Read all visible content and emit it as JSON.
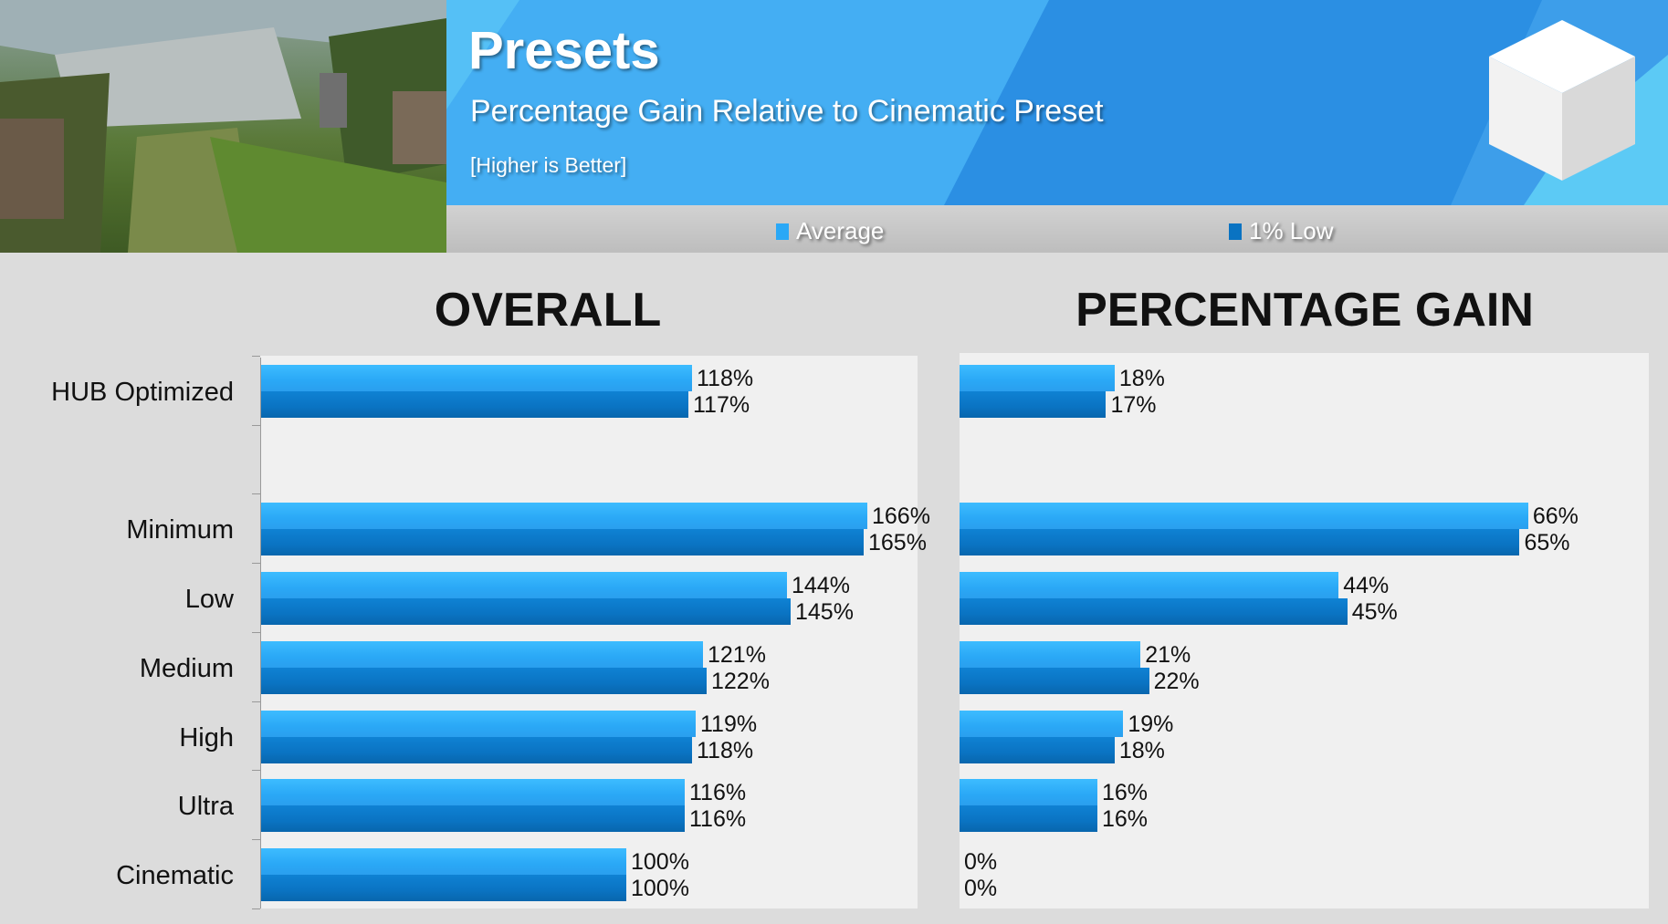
{
  "header": {
    "title": "Presets",
    "subtitle": "Percentage Gain Relative to Cinematic Preset",
    "note": "[Higher is Better]"
  },
  "legend": [
    {
      "label": "Average",
      "color": "#2aa8f6"
    },
    {
      "label": "1% Low",
      "color": "#0a73c2"
    }
  ],
  "chart_data": [
    {
      "type": "bar",
      "orientation": "horizontal",
      "title": "OVERALL",
      "categories": [
        "HUB Optimized",
        "",
        "Minimum",
        "Low",
        "Medium",
        "High",
        "Ultra",
        "Cinematic"
      ],
      "series": [
        {
          "name": "Average",
          "values": [
            118,
            null,
            166,
            144,
            121,
            119,
            116,
            100
          ]
        },
        {
          "name": "1% Low",
          "values": [
            117,
            null,
            165,
            145,
            122,
            118,
            116,
            100
          ]
        }
      ],
      "unit": "%",
      "xlim": [
        0,
        180
      ]
    },
    {
      "type": "bar",
      "orientation": "horizontal",
      "title": "PERCENTAGE GAIN",
      "categories": [
        "HUB Optimized",
        "",
        "Minimum",
        "Low",
        "Medium",
        "High",
        "Ultra",
        "Cinematic"
      ],
      "series": [
        {
          "name": "Average",
          "values": [
            18,
            null,
            66,
            44,
            21,
            19,
            16,
            0
          ]
        },
        {
          "name": "1% Low",
          "values": [
            17,
            null,
            65,
            45,
            22,
            18,
            16,
            0
          ]
        }
      ],
      "unit": "%",
      "xlim": [
        0,
        80
      ]
    }
  ]
}
